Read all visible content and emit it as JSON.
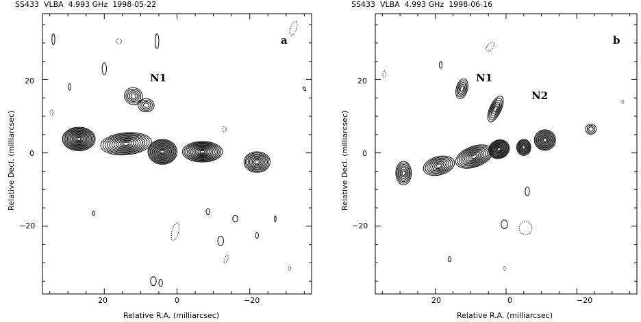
{
  "panels": [
    {
      "id": "a",
      "header": "SS433  VLBA  4.993 GHz  1998-05-22",
      "panel_label": "a",
      "xlabel": "Relative R.A. (milliarcsec)",
      "ylabel": "Relative Decl. (milliarcsec)",
      "x_ticks": [
        "20",
        "0",
        "−20"
      ],
      "y_ticks": [
        "20",
        "0",
        "−20"
      ],
      "annotations": [
        "N1"
      ]
    },
    {
      "id": "b",
      "header": "SS433  VLBA  4.993 GHz  1998-06-16",
      "panel_label": "b",
      "xlabel": "Relative R.A. (milliarcsec)",
      "ylabel": "Relative Decl. (milliarcsec)",
      "x_ticks": [
        "20",
        "0",
        "−20"
      ],
      "y_ticks": [
        "20",
        "0",
        "−20"
      ],
      "annotations": [
        "N1",
        "N2"
      ]
    }
  ],
  "contour_components": [
    [
      {
        "x": 27,
        "y": 3.8,
        "sx": 4.5,
        "sy": 3.2,
        "rot": 0,
        "levels": 13
      },
      {
        "x": 14,
        "y": 2.5,
        "sx": 7,
        "sy": 3,
        "rot": -5,
        "levels": 11
      },
      {
        "x": 4,
        "y": 0.3,
        "sx": 4,
        "sy": 3.4,
        "rot": 0,
        "levels": 13
      },
      {
        "x": -7,
        "y": 0.3,
        "sx": 5.5,
        "sy": 2.8,
        "rot": 0,
        "levels": 12
      },
      {
        "x": -22,
        "y": -2.5,
        "sx": 3.6,
        "sy": 2.8,
        "rot": 0,
        "levels": 9
      },
      {
        "x": 12,
        "y": 15.5,
        "sx": 2.5,
        "sy": 2.3,
        "rot": 20,
        "levels": 5
      },
      {
        "x": 8.5,
        "y": 13,
        "sx": 2.2,
        "sy": 1.8,
        "rot": 0,
        "levels": 4
      },
      {
        "x": 20,
        "y": 23,
        "sx": 0.6,
        "sy": 1.6,
        "rot": 0,
        "levels": 1
      },
      {
        "x": 5.5,
        "y": 30.5,
        "sx": 0.5,
        "sy": 2,
        "rot": 0,
        "levels": 1
      },
      {
        "x": -12,
        "y": -24,
        "sx": 0.8,
        "sy": 1.3,
        "rot": 0,
        "levels": 1
      },
      {
        "x": -16,
        "y": -18,
        "sx": 0.7,
        "sy": 0.9,
        "rot": 0,
        "levels": 1
      },
      {
        "x": 6.5,
        "y": -35,
        "sx": 0.8,
        "sy": 1.2,
        "rot": 0,
        "levels": 1
      },
      {
        "x": 4.5,
        "y": -35.5,
        "sx": 0.5,
        "sy": 1,
        "rot": 0,
        "levels": 1
      },
      {
        "x": -8.5,
        "y": -16,
        "sx": 0.5,
        "sy": 0.8,
        "rot": 0,
        "levels": 1
      },
      {
        "x": -22,
        "y": -22.5,
        "sx": 0.4,
        "sy": 0.8,
        "rot": 0,
        "levels": 1
      },
      {
        "x": 34,
        "y": 31,
        "sx": 0.4,
        "sy": 1.5,
        "rot": 0,
        "levels": 1
      },
      {
        "x": 29.5,
        "y": 18,
        "sx": 0.3,
        "sy": 0.9,
        "rot": 0,
        "levels": 1
      },
      {
        "x": -27,
        "y": -18,
        "sx": 0.25,
        "sy": 0.8,
        "rot": 0,
        "levels": 1
      },
      {
        "x": 23,
        "y": -16.5,
        "sx": 0.3,
        "sy": 0.6,
        "rot": 0,
        "levels": 1
      },
      {
        "x": -35,
        "y": 17.5,
        "sx": 0.3,
        "sy": 0.6,
        "rot": -30,
        "levels": 1
      }
    ],
    [
      {
        "x": 29,
        "y": -5.5,
        "sx": 2.2,
        "sy": 3.2,
        "rot": 0,
        "levels": 7
      },
      {
        "x": 19,
        "y": -3.5,
        "sx": 4.5,
        "sy": 2.5,
        "rot": -15,
        "levels": 8
      },
      {
        "x": 9,
        "y": -1,
        "sx": 5.5,
        "sy": 2.8,
        "rot": -20,
        "levels": 10
      },
      {
        "x": 2,
        "y": 1,
        "sx": 3,
        "sy": 2.5,
        "rot": -25,
        "levels": 11
      },
      {
        "x": -5,
        "y": 1.5,
        "sx": 2,
        "sy": 2.2,
        "rot": 0,
        "levels": 8
      },
      {
        "x": -11,
        "y": 3.5,
        "sx": 3,
        "sy": 2.8,
        "rot": 0,
        "levels": 10
      },
      {
        "x": 12.5,
        "y": 17.5,
        "sx": 1.6,
        "sy": 2.8,
        "rot": 15,
        "levels": 5
      },
      {
        "x": 3,
        "y": 12,
        "sx": 1.6,
        "sy": 3.8,
        "rot": 25,
        "levels": 6
      },
      {
        "x": -24,
        "y": 6.5,
        "sx": 1.5,
        "sy": 1.4,
        "rot": 0,
        "levels": 3
      },
      {
        "x": 18.5,
        "y": 24,
        "sx": 0.4,
        "sy": 0.9,
        "rot": 0,
        "levels": 1
      },
      {
        "x": -6,
        "y": -10.5,
        "sx": 0.6,
        "sy": 1.2,
        "rot": 0,
        "levels": 1
      },
      {
        "x": 0.5,
        "y": -19.5,
        "sx": 0.9,
        "sy": 1.2,
        "rot": 0,
        "levels": 1
      },
      {
        "x": 16,
        "y": -29,
        "sx": 0.4,
        "sy": 0.7,
        "rot": 0,
        "levels": 1
      }
    ]
  ],
  "dotted_components": [
    [
      {
        "x": -32,
        "y": 34,
        "sx": 0.8,
        "sy": 2,
        "rot": 20
      },
      {
        "x": 16,
        "y": 30.5,
        "sx": 0.7,
        "sy": 0.7,
        "rot": 0
      },
      {
        "x": 0.5,
        "y": -21.5,
        "sx": 0.9,
        "sy": 2.5,
        "rot": 15
      },
      {
        "x": -13.5,
        "y": -29,
        "sx": 0.4,
        "sy": 1.2,
        "rot": 20
      },
      {
        "x": -13,
        "y": 6.5,
        "sx": 0.5,
        "sy": 0.8,
        "rot": 0
      },
      {
        "x": 34.5,
        "y": 11,
        "sx": 0.4,
        "sy": 0.8,
        "rot": 0
      },
      {
        "x": -31,
        "y": -31.5,
        "sx": 0.3,
        "sy": 0.6,
        "rot": 0
      }
    ],
    [
      {
        "x": 4.5,
        "y": 29,
        "sx": 0.8,
        "sy": 1.4,
        "rot": 40
      },
      {
        "x": -5.5,
        "y": -20.5,
        "sx": 1.8,
        "sy": 1.8,
        "rot": 0
      },
      {
        "x": 34.5,
        "y": 21.5,
        "sx": 0.4,
        "sy": 0.9,
        "rot": 0
      },
      {
        "x": 0.5,
        "y": -31.5,
        "sx": 0.3,
        "sy": 0.6,
        "rot": 0
      },
      {
        "x": -33,
        "y": 14,
        "sx": 0.3,
        "sy": 0.5,
        "rot": 0
      }
    ]
  ]
}
